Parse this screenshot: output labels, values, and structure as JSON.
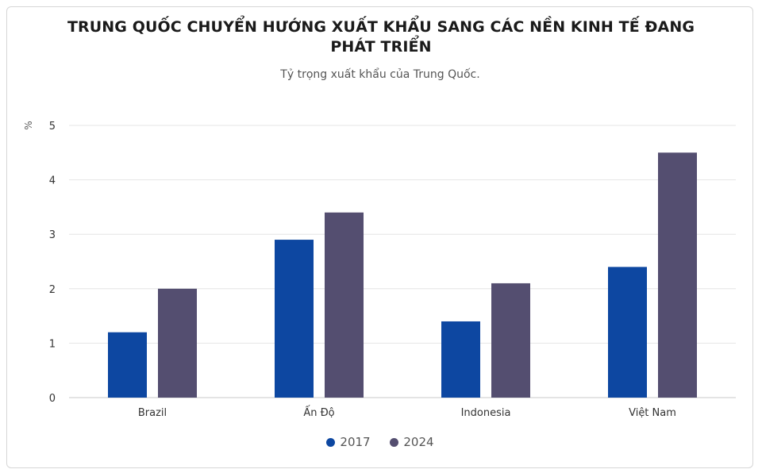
{
  "chart_data": {
    "type": "bar",
    "title": "TRUNG QUỐC CHUYỂN HƯỚNG XUẤT KHẨU SANG CÁC NỀN KINH TẾ ĐANG PHÁT TRIỂN",
    "subtitle": "Tỷ trọng xuất khẩu của Trung Quốc.",
    "ylabel": "%",
    "xlabel": "",
    "categories": [
      "Brazil",
      "Ấn Độ",
      "Indonesia",
      "Việt Nam"
    ],
    "series": [
      {
        "name": "2017",
        "color": "#0d47a1",
        "values": [
          1.2,
          2.9,
          1.4,
          2.4
        ]
      },
      {
        "name": "2024",
        "color": "#544e70",
        "values": [
          2.0,
          3.4,
          2.1,
          4.5
        ]
      }
    ],
    "ylim": [
      0,
      5
    ],
    "yticks": [
      "0",
      "1",
      "2",
      "3",
      "4",
      "5"
    ],
    "grid": true,
    "legend_position": "bottom-center"
  }
}
